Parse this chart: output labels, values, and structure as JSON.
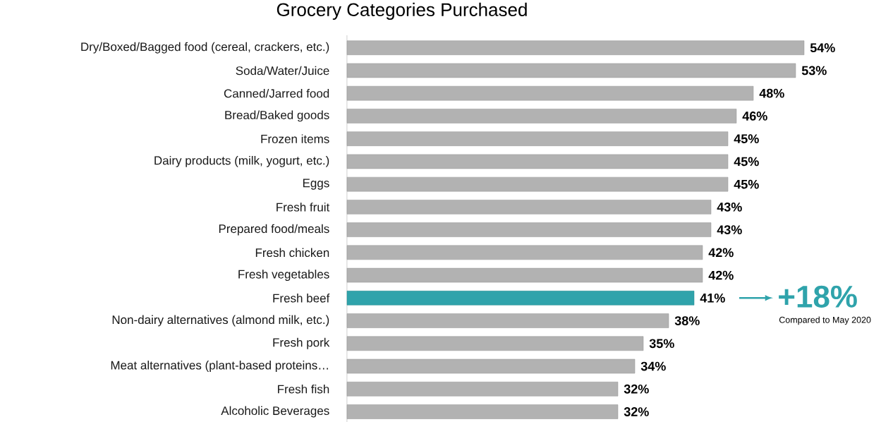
{
  "chart_data": {
    "type": "bar",
    "orientation": "horizontal",
    "title": "Grocery Categories Purchased",
    "categories": [
      "Dry/Boxed/Bagged food (cereal, crackers, etc.)",
      "Soda/Water/Juice",
      "Canned/Jarred food",
      "Bread/Baked goods",
      "Frozen items",
      "Dairy products (milk, yogurt, etc.)",
      "Eggs",
      "Fresh fruit",
      "Prepared food/meals",
      "Fresh chicken",
      "Fresh vegetables",
      "Fresh beef",
      "Non-dairy alternatives (almond milk, etc.)",
      "Fresh pork",
      "Meat alternatives (plant-based proteins…",
      "Fresh fish",
      "Alcoholic Beverages"
    ],
    "values": [
      54,
      53,
      48,
      46,
      45,
      45,
      45,
      43,
      43,
      42,
      42,
      41,
      38,
      35,
      34,
      32,
      32
    ],
    "value_labels": [
      "54%",
      "53%",
      "48%",
      "46%",
      "45%",
      "45%",
      "45%",
      "43%",
      "43%",
      "42%",
      "42%",
      "41%",
      "38%",
      "35%",
      "34%",
      "32%",
      "32%"
    ],
    "colors": [
      "#b2b2b2",
      "#b2b2b2",
      "#b2b2b2",
      "#b2b2b2",
      "#b2b2b2",
      "#b2b2b2",
      "#b2b2b2",
      "#b2b2b2",
      "#b2b2b2",
      "#b2b2b2",
      "#b2b2b2",
      "#2fa3ab",
      "#b2b2b2",
      "#b2b2b2",
      "#b2b2b2",
      "#b2b2b2",
      "#b2b2b2"
    ],
    "annotations": [
      "+18%",
      "Compared to May 2020"
    ]
  }
}
